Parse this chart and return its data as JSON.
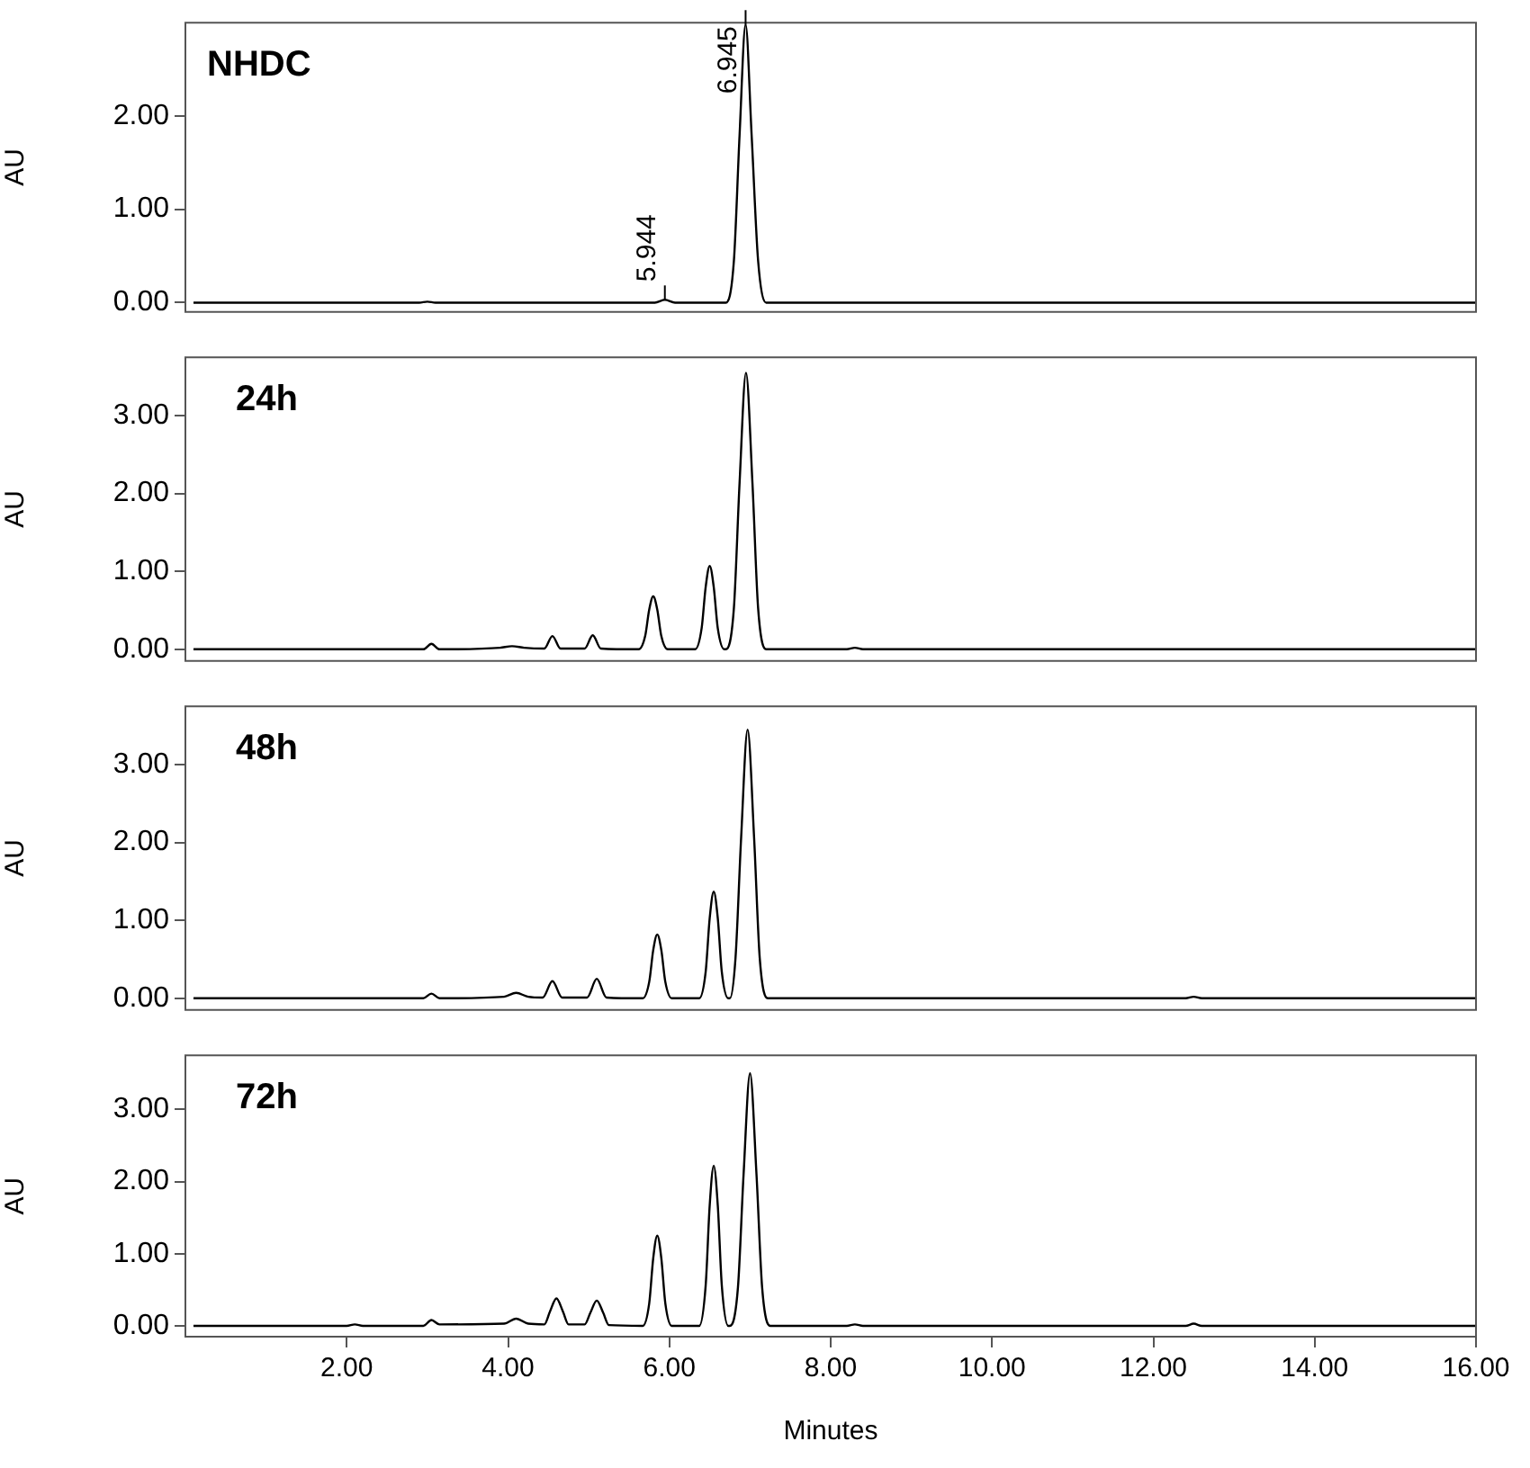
{
  "chart_data": [
    {
      "type": "line",
      "title": "NHDC",
      "ylabel": "AU",
      "xlim": [
        0,
        16
      ],
      "ylim": [
        -0.1,
        3.0
      ],
      "grid": false,
      "marker": "none",
      "tick_labels": "y",
      "yticks": [
        {
          "value": 0,
          "label": "0.00"
        },
        {
          "value": 1,
          "label": "1.00"
        },
        {
          "value": 2,
          "label": "2.00"
        }
      ],
      "annotations": [
        {
          "text": "5.944",
          "x": 5.944,
          "y": 0.03
        },
        {
          "text": "6.945",
          "x": 6.945,
          "y": 2.98
        }
      ],
      "series": [
        {
          "color": "#000000",
          "x": [
            0.1,
            2.9,
            3.0,
            3.1,
            5.82,
            5.944,
            6.07,
            6.7,
            6.8,
            6.87,
            6.945,
            7.02,
            7.1,
            7.2,
            16
          ],
          "values": [
            0,
            0,
            0.01,
            0,
            0,
            0.03,
            0,
            0,
            0.45,
            1.79,
            2.98,
            1.79,
            0.45,
            0,
            0
          ]
        }
      ]
    },
    {
      "type": "line",
      "title": "24h",
      "ylabel": "AU",
      "xlim": [
        0,
        16
      ],
      "ylim": [
        -0.15,
        3.75
      ],
      "grid": false,
      "marker": "none",
      "tick_labels": "y",
      "yticks": [
        {
          "value": 0,
          "label": "0.00"
        },
        {
          "value": 1,
          "label": "1.00"
        },
        {
          "value": 2,
          "label": "2.00"
        },
        {
          "value": 3,
          "label": "3.00"
        }
      ],
      "series": [
        {
          "color": "#000000",
          "x": [
            0.1,
            2.95,
            3.05,
            3.15,
            3.9,
            4.05,
            4.2,
            4.45,
            4.55,
            4.65,
            4.95,
            5.05,
            5.15,
            5.62,
            5.7,
            5.75,
            5.8,
            5.85,
            5.9,
            5.98,
            6.32,
            6.4,
            6.45,
            6.5,
            6.55,
            6.6,
            6.68,
            6.7,
            6.8,
            6.87,
            6.95,
            7.03,
            7.1,
            7.2,
            8.2,
            8.3,
            8.4,
            16
          ],
          "values": [
            0,
            0,
            0.07,
            0,
            0.02,
            0.04,
            0.02,
            0.01,
            0.17,
            0.01,
            0.01,
            0.18,
            0.01,
            0,
            0.17,
            0.51,
            0.68,
            0.51,
            0.17,
            0,
            0,
            0.27,
            0.8,
            1.07,
            0.8,
            0.27,
            0,
            0,
            0.53,
            2.13,
            3.55,
            2.13,
            0.53,
            0,
            0,
            0.02,
            0,
            0
          ]
        }
      ]
    },
    {
      "type": "line",
      "title": "48h",
      "ylabel": "AU",
      "xlim": [
        0,
        16
      ],
      "ylim": [
        -0.15,
        3.75
      ],
      "grid": false,
      "marker": "none",
      "tick_labels": "y",
      "yticks": [
        {
          "value": 0,
          "label": "0.00"
        },
        {
          "value": 1,
          "label": "1.00"
        },
        {
          "value": 2,
          "label": "2.00"
        },
        {
          "value": 3,
          "label": "3.00"
        }
      ],
      "series": [
        {
          "color": "#000000",
          "x": [
            0.1,
            2.95,
            3.05,
            3.15,
            3.95,
            4.1,
            4.25,
            4.43,
            4.55,
            4.67,
            4.98,
            5.1,
            5.22,
            5.67,
            5.75,
            5.8,
            5.85,
            5.9,
            5.95,
            6.03,
            6.37,
            6.45,
            6.5,
            6.55,
            6.6,
            6.65,
            6.73,
            6.75,
            6.82,
            6.89,
            6.97,
            7.05,
            7.12,
            7.22,
            12.4,
            12.5,
            12.6,
            16
          ],
          "values": [
            0,
            0,
            0.06,
            0,
            0.02,
            0.07,
            0.02,
            0.01,
            0.22,
            0.01,
            0.01,
            0.25,
            0.01,
            0,
            0.21,
            0.62,
            0.82,
            0.62,
            0.21,
            0,
            0,
            0.34,
            1.03,
            1.37,
            1.03,
            0.34,
            0,
            0,
            0.52,
            2.07,
            3.45,
            2.07,
            0.52,
            0,
            0,
            0.02,
            0,
            0
          ]
        }
      ]
    },
    {
      "type": "line",
      "title": "72h",
      "ylabel": "AU",
      "xlabel": "Minutes",
      "xlim": [
        0,
        16
      ],
      "ylim": [
        -0.15,
        3.75
      ],
      "grid": false,
      "marker": "none",
      "xticks": [
        {
          "value": 2,
          "label": "2.00"
        },
        {
          "value": 4,
          "label": "4.00"
        },
        {
          "value": 6,
          "label": "6.00"
        },
        {
          "value": 8,
          "label": "8.00"
        },
        {
          "value": 10,
          "label": "10.00"
        },
        {
          "value": 12,
          "label": "12.00"
        },
        {
          "value": 14,
          "label": "14.00"
        },
        {
          "value": 16,
          "label": "16.00"
        }
      ],
      "yticks": [
        {
          "value": 0,
          "label": "0.00"
        },
        {
          "value": 1,
          "label": "1.00"
        },
        {
          "value": 2,
          "label": "2.00"
        },
        {
          "value": 3,
          "label": "3.00"
        }
      ],
      "series": [
        {
          "color": "#000000",
          "x": [
            0.1,
            2.0,
            2.1,
            2.2,
            2.95,
            3.05,
            3.15,
            3.95,
            4.1,
            4.25,
            4.45,
            4.52,
            4.6,
            4.68,
            4.75,
            4.95,
            5.02,
            5.1,
            5.18,
            5.25,
            5.67,
            5.75,
            5.8,
            5.85,
            5.9,
            5.95,
            6.03,
            6.37,
            6.45,
            6.5,
            6.55,
            6.6,
            6.65,
            6.73,
            6.75,
            6.85,
            6.92,
            7.0,
            7.08,
            7.15,
            7.25,
            8.2,
            8.3,
            8.4,
            12.4,
            12.5,
            12.6,
            16
          ],
          "values": [
            0,
            0,
            0.02,
            0,
            0,
            0.08,
            0.02,
            0.03,
            0.1,
            0.03,
            0.02,
            0.2,
            0.38,
            0.2,
            0.02,
            0.02,
            0.18,
            0.35,
            0.18,
            0.01,
            0,
            0.31,
            0.94,
            1.25,
            0.94,
            0.31,
            0,
            0,
            0.56,
            1.67,
            2.22,
            1.67,
            0.56,
            0,
            0,
            0.53,
            2.1,
            3.5,
            2.1,
            0.53,
            0,
            0,
            0.02,
            0,
            0,
            0.03,
            0,
            0
          ]
        }
      ]
    }
  ]
}
